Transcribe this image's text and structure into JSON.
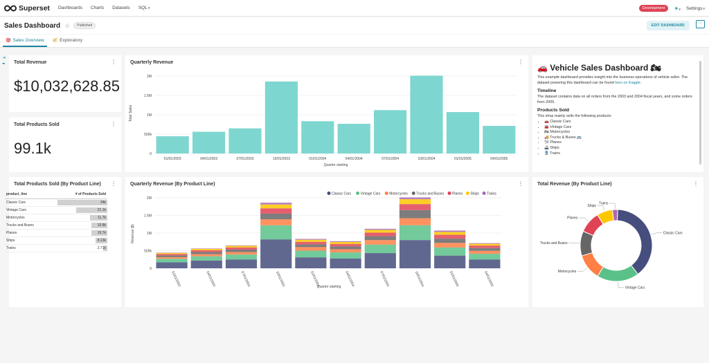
{
  "nav": {
    "brand": "Superset",
    "menu": [
      "Dashboards",
      "Charts",
      "Datasets",
      "SQL"
    ],
    "env_badge": "Development",
    "plus": "+",
    "settings": "Settings"
  },
  "header": {
    "title": "Sales Dashboard",
    "status": "Published",
    "edit_button": "EDIT DASHBOARD",
    "more": "···"
  },
  "tabs": [
    {
      "label": "Sales Overview",
      "active": true
    },
    {
      "label": "Exploratory",
      "active": false
    }
  ],
  "kpis": {
    "revenue": {
      "title": "Total Revenue",
      "value": "$10,032,628.85"
    },
    "products": {
      "title": "Total Products Sold",
      "value": "99.1k"
    }
  },
  "markdown": {
    "heading": "🚗 Vehicle Sales Dashboard 🏍",
    "intro": "This example dashboard provides insight into the business operations of vehicle seller. The dataset powering this dashboard can be found",
    "intro_link": "here on Kaggle",
    "intro_end": ".",
    "timeline_heading": "Timeline",
    "timeline_text": "The dataset contains data on all orders from the 2003 and 2004 fiscal years, and some orders from 2005.",
    "products_heading": "Products Sold",
    "products_text": "This shop mainly sells the following products:",
    "products": [
      "🚗 Classic Cars",
      "🚘 Vintage Cars",
      "🏍 Motorcycles",
      "🚚 Trucks & Buses 🚌",
      "🛩 Planes",
      "🚢 Ships",
      "🚆 Trains"
    ]
  },
  "table": {
    "title": "Total Products Sold (By Product Line)",
    "columns": [
      "product_line",
      "# of Products Sold"
    ],
    "rows": [
      {
        "name": "Classic Cars",
        "value": 34000,
        "label": "34k"
      },
      {
        "name": "Vintage Cars",
        "value": 21100,
        "label": "21.1k"
      },
      {
        "name": "Motorcycles",
        "value": 11700,
        "label": "11.7k"
      },
      {
        "name": "Trucks and Buses",
        "value": 10800,
        "label": "10.8k"
      },
      {
        "name": "Planes",
        "value": 10700,
        "label": "10.7k"
      },
      {
        "name": "Ships",
        "value": 8130,
        "label": "8.13k"
      },
      {
        "name": "Trains",
        "value": 2710,
        "label": "2.71k"
      }
    ]
  },
  "chart_data": [
    {
      "type": "bar",
      "title": "Quarterly Revenue",
      "xlabel": "Quarter starting",
      "ylabel": "Total Sales",
      "ylim": [
        0,
        2000000
      ],
      "yticks": [
        "0",
        "500k",
        "1M",
        "1.5M",
        "2M"
      ],
      "ytick_values": [
        0,
        500000,
        1000000,
        1500000,
        2000000
      ],
      "categories": [
        "01/01/2003",
        "04/01/2003",
        "07/01/2003",
        "10/01/2003",
        "01/01/2004",
        "04/01/2004",
        "07/01/2004",
        "10/01/2004",
        "01/01/2005",
        "04/01/2005"
      ],
      "values": [
        445000,
        562000,
        649000,
        1860000,
        833000,
        767000,
        1120000,
        2010000,
        1070000,
        713000
      ],
      "color": "#7ed6d0",
      "grid": true
    },
    {
      "type": "bar",
      "stacked": true,
      "title": "Quarterly Revenue (By Product Line)",
      "xlabel": "Quarter starting",
      "ylabel": "Revenue ($)",
      "ylim": [
        0,
        2000000
      ],
      "yticks": [
        "0",
        "500k",
        "1M",
        "1.5M",
        "2M"
      ],
      "ytick_values": [
        0,
        500000,
        1000000,
        1500000,
        2000000
      ],
      "legend_position": "top-right",
      "categories": [
        "01/01/2003",
        "04/01/2003",
        "07/01/2003",
        "10/01/2003",
        "01/01/2004",
        "04/01/2004",
        "07/01/2004",
        "10/01/2004",
        "01/01/2005",
        "04/01/2005"
      ],
      "series": [
        {
          "name": "Classic Cars",
          "color": "#454e7c",
          "values": [
            170000,
            220000,
            250000,
            820000,
            310000,
            280000,
            430000,
            800000,
            360000,
            250000
          ]
        },
        {
          "name": "Vintage Cars",
          "color": "#5ac189",
          "values": [
            100000,
            120000,
            140000,
            400000,
            190000,
            170000,
            240000,
            420000,
            230000,
            160000
          ]
        },
        {
          "name": "Motorcycles",
          "color": "#ff7f44",
          "values": [
            45000,
            60000,
            70000,
            170000,
            100000,
            90000,
            130000,
            200000,
            130000,
            85000
          ]
        },
        {
          "name": "Trucks and Buses",
          "color": "#666666",
          "values": [
            50000,
            60000,
            70000,
            160000,
            80000,
            80000,
            110000,
            230000,
            120000,
            80000
          ]
        },
        {
          "name": "Planes",
          "color": "#e04355",
          "values": [
            40000,
            50000,
            60000,
            150000,
            70000,
            70000,
            100000,
            170000,
            110000,
            70000
          ]
        },
        {
          "name": "Ships",
          "color": "#fcc700",
          "values": [
            30000,
            40000,
            45000,
            110000,
            60000,
            55000,
            80000,
            140000,
            80000,
            50000
          ]
        },
        {
          "name": "Trains",
          "color": "#a868b7",
          "values": [
            10000,
            12000,
            14000,
            50000,
            23000,
            22000,
            30000,
            50000,
            40000,
            18000
          ]
        }
      ]
    },
    {
      "type": "pie",
      "donut": true,
      "title": "Total Revenue (By Product Line)",
      "labels": [
        "Classic Cars",
        "Vintage Cars",
        "Motorcycles",
        "Trucks and Buses",
        "Planes",
        "Ships",
        "Trains"
      ],
      "values": [
        3920000,
        1900000,
        1170000,
        1120000,
        980000,
        710000,
        230000
      ],
      "colors": [
        "#454e7c",
        "#5ac189",
        "#ff7f44",
        "#666666",
        "#e04355",
        "#fcc700",
        "#a868b7"
      ]
    }
  ]
}
